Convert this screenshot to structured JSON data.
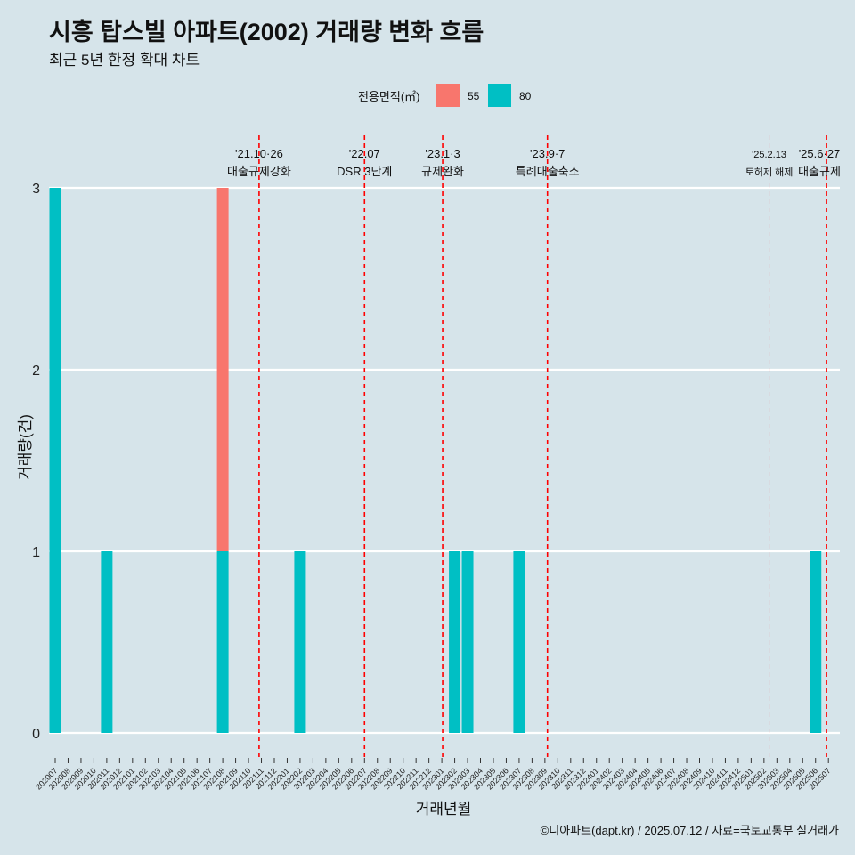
{
  "title": "시흥 탑스빌 아파트(2002) 거래량 변화 흐름",
  "subtitle": "최근 5년 한정 확대 차트",
  "caption": "©디아파트(dapt.kr) / 2025.07.12 / 자료=국토교통부 실거래가",
  "colors": {
    "background": "#d6e4ea",
    "s55": "#f8766d",
    "s80": "#00bfc4",
    "event_line": "#ff0000",
    "grid": "#ffffff"
  },
  "chart_data": {
    "type": "bar",
    "xlabel": "거래년월",
    "ylabel": "거래량(건)",
    "ylim": [
      0,
      3
    ],
    "yticks": [
      0,
      1,
      2,
      3
    ],
    "legend": {
      "title": "전용면적(㎡)",
      "placement": "top",
      "entries": [
        "55",
        "80"
      ]
    },
    "categories": [
      "202007",
      "202008",
      "202009",
      "202010",
      "202011",
      "202012",
      "202101",
      "202102",
      "202103",
      "202104",
      "202105",
      "202106",
      "202107",
      "202108",
      "202109",
      "202110",
      "202111",
      "202112",
      "202201",
      "202202",
      "202203",
      "202204",
      "202205",
      "202206",
      "202207",
      "202208",
      "202209",
      "202210",
      "202211",
      "202212",
      "202301",
      "202302",
      "202303",
      "202304",
      "202305",
      "202306",
      "202307",
      "202308",
      "202309",
      "202310",
      "202311",
      "202312",
      "202401",
      "202402",
      "202403",
      "202404",
      "202405",
      "202406",
      "202407",
      "202408",
      "202409",
      "202410",
      "202411",
      "202412",
      "202501",
      "202502",
      "202503",
      "202504",
      "202505",
      "202506",
      "202507"
    ],
    "series": [
      {
        "name": "55",
        "color": "#f8766d",
        "points": [
          {
            "x": "202108",
            "y": 2
          }
        ]
      },
      {
        "name": "80",
        "color": "#00bfc4",
        "points": [
          {
            "x": "202007",
            "y": 3
          },
          {
            "x": "202011",
            "y": 1
          },
          {
            "x": "202108",
            "y": 1
          },
          {
            "x": "202202",
            "y": 1
          },
          {
            "x": "202302",
            "y": 1
          },
          {
            "x": "202303",
            "y": 1
          },
          {
            "x": "202307",
            "y": 1
          },
          {
            "x": "202506",
            "y": 1
          }
        ]
      }
    ],
    "events": [
      {
        "x": "2021-10-26",
        "date": "'21.10·26",
        "label": "대출규제강화",
        "major": true
      },
      {
        "x": "2022-07-01",
        "date": "'22.07",
        "label": "DSR 3단계",
        "major": true
      },
      {
        "x": "2023-01-03",
        "date": "'23.1·3",
        "label": "규제완화",
        "major": true
      },
      {
        "x": "2023-09-07",
        "date": "'23.9·7",
        "label": "특례대출축소",
        "major": true
      },
      {
        "x": "2025-02-13",
        "date": "'25.2.13",
        "label": "토허제 해제",
        "major": false
      },
      {
        "x": "2025-06-27",
        "date": "'25.6·27",
        "label": "대출규제",
        "major": true
      }
    ]
  }
}
